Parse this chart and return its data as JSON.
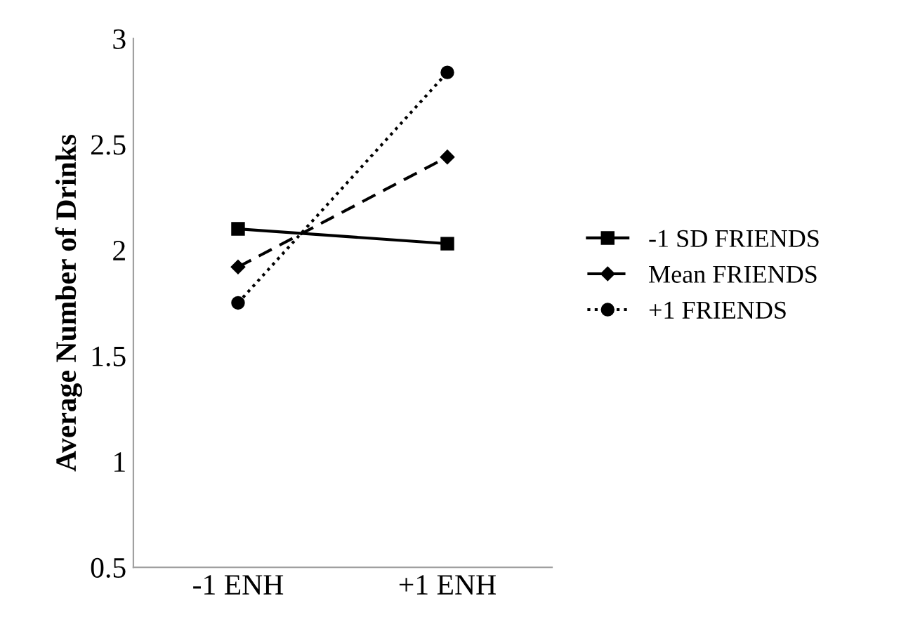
{
  "chart_data": {
    "type": "line",
    "ylabel": "Average Number of Drinks",
    "categories": [
      "-1 ENH",
      "+1 ENH"
    ],
    "series": [
      {
        "name": "-1 SD FRIENDS",
        "color": "#000000",
        "values": [
          2.1,
          2.03
        ],
        "marker": "square",
        "line_style": "solid"
      },
      {
        "name": "Mean FRIENDS",
        "color": "#000000",
        "values": [
          1.92,
          2.44
        ],
        "marker": "diamond",
        "line_style": "dashed"
      },
      {
        "name": "+1 FRIENDS",
        "color": "#000000",
        "values": [
          1.75,
          2.84
        ],
        "marker": "circle",
        "line_style": "dotted"
      }
    ],
    "ylim": [
      0.5,
      3
    ],
    "yticks": [
      0.5,
      1,
      1.5,
      2,
      2.5,
      3
    ],
    "grid": false,
    "legend": "right"
  }
}
